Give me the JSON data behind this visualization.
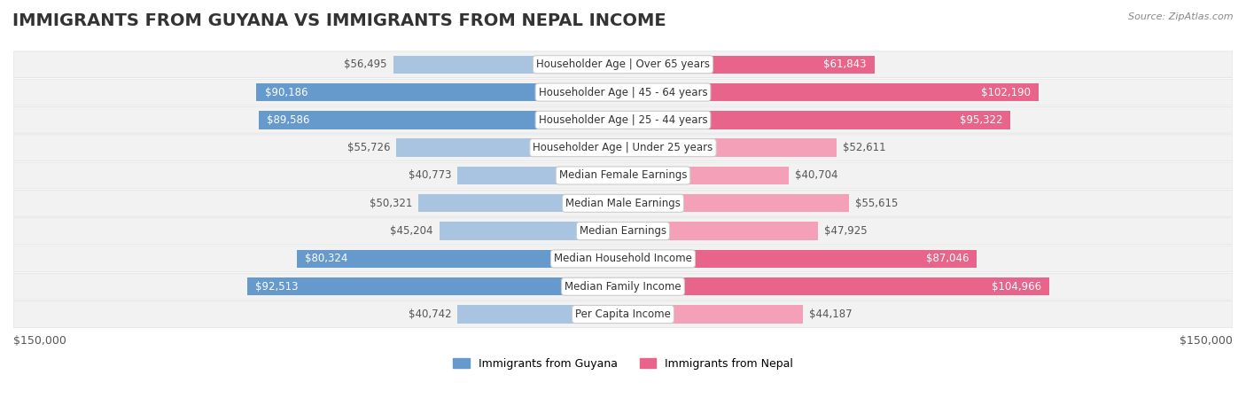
{
  "title": "IMMIGRANTS FROM GUYANA VS IMMIGRANTS FROM NEPAL INCOME",
  "source": "Source: ZipAtlas.com",
  "categories": [
    "Per Capita Income",
    "Median Family Income",
    "Median Household Income",
    "Median Earnings",
    "Median Male Earnings",
    "Median Female Earnings",
    "Householder Age | Under 25 years",
    "Householder Age | 25 - 44 years",
    "Householder Age | 45 - 64 years",
    "Householder Age | Over 65 years"
  ],
  "guyana_values": [
    40742,
    92513,
    80324,
    45204,
    50321,
    40773,
    55726,
    89586,
    90186,
    56495
  ],
  "nepal_values": [
    44187,
    104966,
    87046,
    47925,
    55615,
    40704,
    52611,
    95322,
    102190,
    61843
  ],
  "guyana_labels": [
    "$40,742",
    "$92,513",
    "$80,324",
    "$45,204",
    "$50,321",
    "$40,773",
    "$55,726",
    "$89,586",
    "$90,186",
    "$56,495"
  ],
  "nepal_labels": [
    "$44,187",
    "$104,966",
    "$87,046",
    "$47,925",
    "$55,615",
    "$40,704",
    "$52,611",
    "$95,322",
    "$102,190",
    "$61,843"
  ],
  "guyana_color_light": "#a8c4e0",
  "guyana_color_dark": "#6699cc",
  "nepal_color_light": "#f4a0b8",
  "nepal_color_dark": "#e8648a",
  "label_color_dark": "#ffffff",
  "label_color_light": "#555555",
  "max_value": 150000,
  "x_axis_label_left": "$150,000",
  "x_axis_label_right": "$150,000",
  "legend_guyana": "Immigrants from Guyana",
  "legend_nepal": "Immigrants from Nepal",
  "background_color": "#ffffff",
  "row_bg_color": "#f0f0f0",
  "title_fontsize": 14,
  "label_fontsize": 8.5,
  "category_fontsize": 8.5,
  "dark_threshold": 60000
}
